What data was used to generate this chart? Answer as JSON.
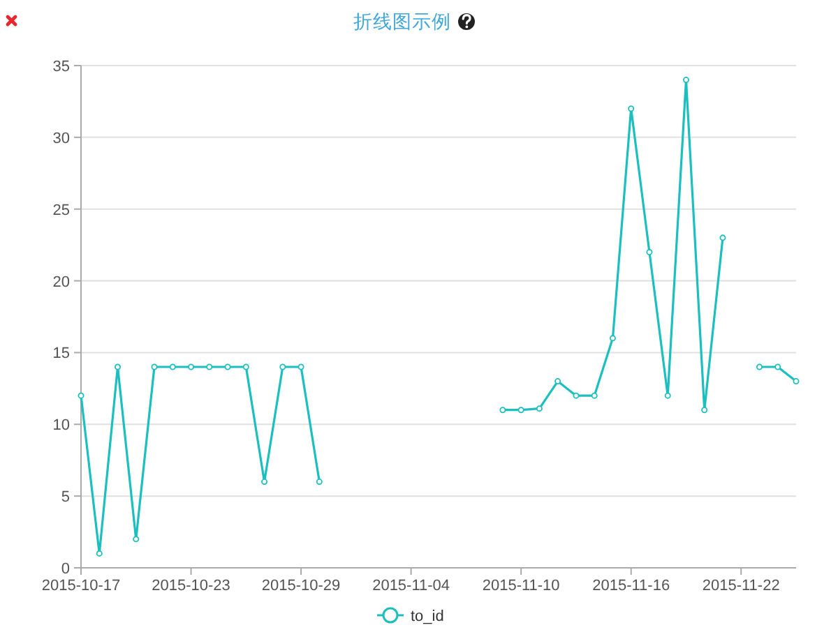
{
  "chart_data": {
    "type": "line",
    "title": "折线图示例",
    "categories": [
      "2015-10-17",
      null,
      null,
      null,
      null,
      null,
      "2015-10-23",
      null,
      null,
      null,
      null,
      null,
      "2015-10-29",
      null,
      null,
      null,
      null,
      null,
      "2015-11-04",
      null,
      null,
      null,
      null,
      null,
      "2015-11-10",
      null,
      null,
      null,
      null,
      null,
      "2015-11-16",
      null,
      null,
      null,
      null,
      null,
      "2015-11-22",
      null,
      null,
      null
    ],
    "series": [
      {
        "name": "to_id",
        "color": "#1bbfbf",
        "values": [
          12,
          1,
          14,
          2,
          14,
          14,
          14,
          14,
          14,
          14,
          6,
          14,
          14,
          6,
          null,
          null,
          null,
          null,
          null,
          null,
          null,
          null,
          null,
          11,
          11,
          11.1,
          13,
          12,
          12,
          16,
          32,
          22,
          12,
          34,
          11,
          23,
          null,
          14,
          14,
          13
        ]
      }
    ],
    "ylim": [
      0,
      35
    ],
    "yticks": [
      0,
      5,
      10,
      15,
      20,
      25,
      30,
      35
    ],
    "grid": "y",
    "legend": "bottom",
    "marker": "circle"
  }
}
